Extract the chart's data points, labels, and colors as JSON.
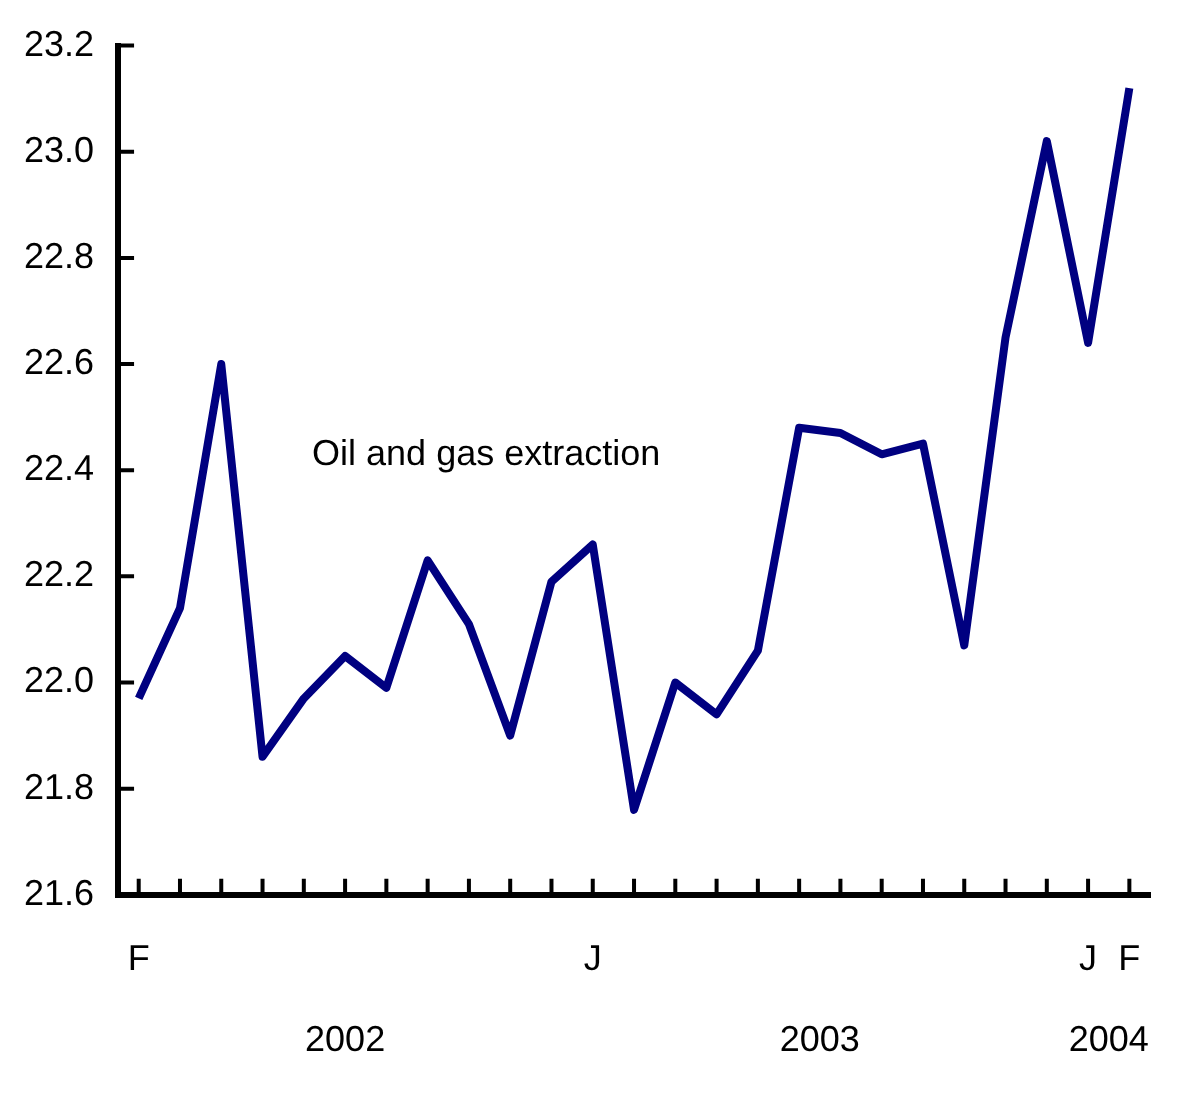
{
  "chart_data": {
    "type": "line",
    "categories": [
      "F",
      null,
      null,
      null,
      null,
      null,
      null,
      null,
      null,
      null,
      null,
      "J",
      null,
      null,
      null,
      null,
      null,
      null,
      null,
      null,
      null,
      null,
      null,
      "J",
      "F"
    ],
    "series": [
      {
        "name": "Oil and gas extraction",
        "color": "#000080",
        "values": [
          21.97,
          22.14,
          22.6,
          21.86,
          21.97,
          22.05,
          21.99,
          22.23,
          22.11,
          21.9,
          22.19,
          22.26,
          21.76,
          22.0,
          21.94,
          22.06,
          22.48,
          22.47,
          22.43,
          22.45,
          22.07,
          22.65,
          23.02,
          22.64,
          23.12
        ]
      }
    ],
    "ylim": [
      21.6,
      23.2
    ],
    "yticks": [
      21.6,
      21.8,
      {
        "value": 22,
        "label": "22.0"
      },
      22.2,
      22.4,
      22.6,
      22.8,
      {
        "value": 23,
        "label": "23.0"
      },
      23.2
    ],
    "annotations": [
      "2002",
      "2003",
      "2004"
    ],
    "grid": false,
    "legend": false,
    "marker": "none",
    "line_style": "solid"
  }
}
